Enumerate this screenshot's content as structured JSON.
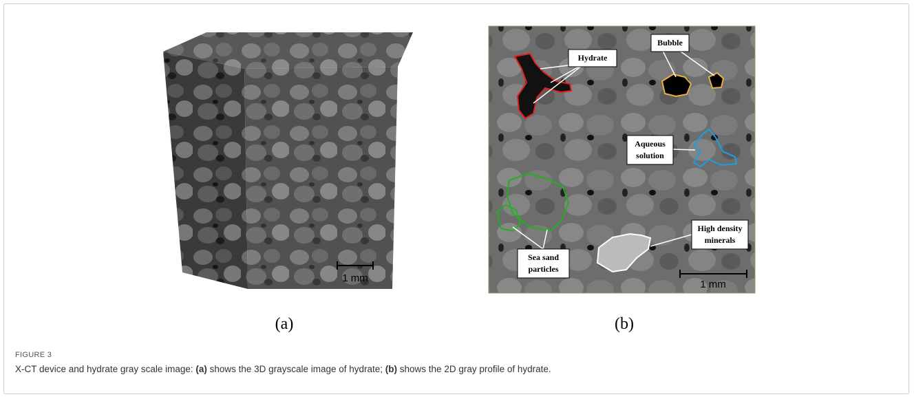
{
  "figure": {
    "label": "FIGURE 3",
    "caption": [
      "X-CT device and hydrate gray scale image: ",
      "(a)",
      " shows the 3D grayscale image of hydrate; ",
      "(b)",
      " shows the 2D gray profile of hydrate."
    ],
    "panels": [
      {
        "label": "(a)",
        "scale_bar": "1 mm"
      },
      {
        "label": "(b)",
        "scale_bar": "1 mm",
        "annotations": [
          {
            "lines": [
              "Hydrate"
            ]
          },
          {
            "lines": [
              "Bubble"
            ]
          },
          {
            "lines": [
              "Aqueous",
              "solution"
            ]
          },
          {
            "lines": [
              "High density",
              "minerals"
            ]
          },
          {
            "lines": [
              "Sea sand",
              "particles"
            ]
          }
        ]
      }
    ]
  }
}
